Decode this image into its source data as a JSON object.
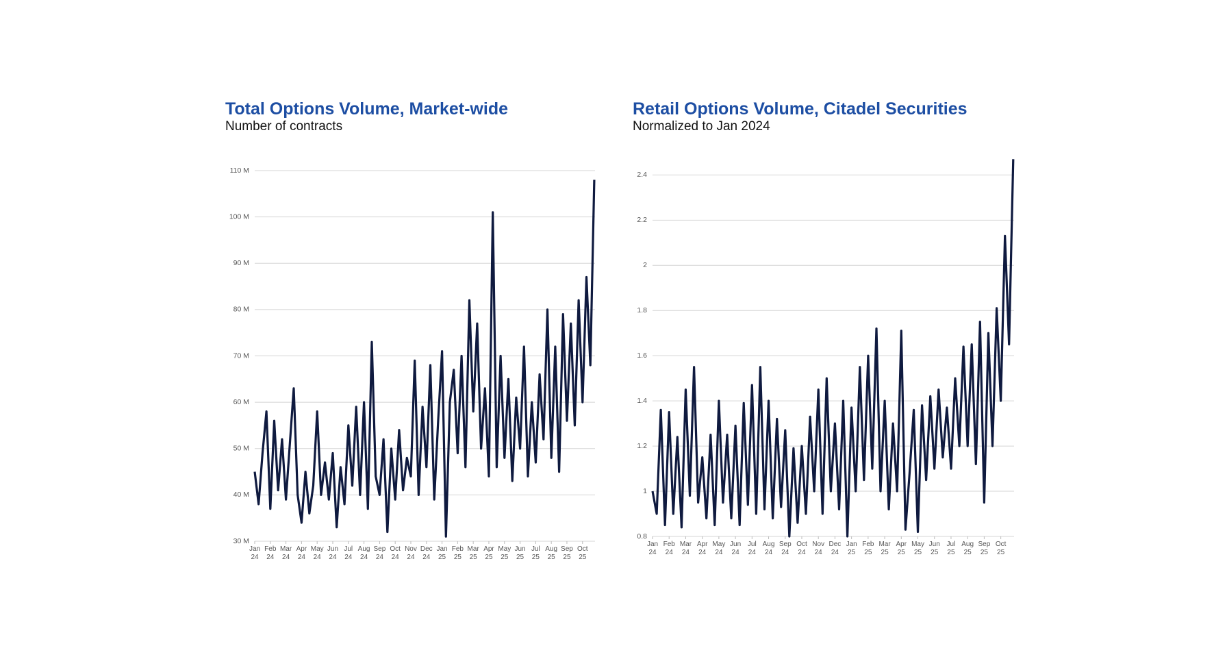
{
  "chart_data": [
    {
      "type": "line",
      "title": "Total Options Volume, Market-wide",
      "subtitle": "Number of contracts",
      "x": [
        0,
        0.25,
        0.5,
        0.75,
        1,
        1.25,
        1.5,
        1.75,
        2,
        2.25,
        2.5,
        2.75,
        3,
        3.25,
        3.5,
        3.75,
        4,
        4.25,
        4.5,
        4.75,
        5,
        5.25,
        5.5,
        5.75,
        6,
        6.25,
        6.5,
        6.75,
        7,
        7.25,
        7.5,
        7.75,
        8,
        8.25,
        8.5,
        8.75,
        9,
        9.25,
        9.5,
        9.75,
        10,
        10.25,
        10.5,
        10.75,
        11,
        11.25,
        11.5,
        11.75,
        12,
        12.25,
        12.5,
        12.75,
        13,
        13.25,
        13.5,
        13.75,
        14,
        14.25,
        14.5,
        14.75,
        15,
        15.25,
        15.5,
        15.75,
        16,
        16.25,
        16.5,
        16.75,
        17,
        17.25,
        17.5,
        17.75,
        18,
        18.25,
        18.5,
        18.75,
        19,
        19.25,
        19.5,
        19.75,
        20,
        20.25,
        20.5,
        20.75,
        21,
        21.25,
        21.5,
        21.75
      ],
      "series": [
        {
          "color": "#0f1a3f",
          "values": [
            45,
            38,
            49,
            58,
            37,
            56,
            41,
            52,
            39,
            51,
            63,
            40,
            34,
            45,
            36,
            42,
            58,
            40,
            47,
            39,
            49,
            33,
            46,
            38,
            55,
            42,
            59,
            40,
            60,
            37,
            73,
            44,
            40,
            52,
            32,
            50,
            39,
            54,
            41,
            48,
            44,
            69,
            40,
            59,
            46,
            68,
            39,
            56,
            71,
            31,
            60,
            67,
            49,
            70,
            46,
            82,
            58,
            77,
            50,
            63,
            44,
            101,
            46,
            70,
            48,
            65,
            43,
            61,
            50,
            72,
            44,
            60,
            47,
            66,
            52,
            80,
            48,
            72,
            45,
            79,
            56,
            77,
            55,
            82,
            60,
            87,
            68,
            108
          ]
        }
      ],
      "xlim": [
        0,
        21.8
      ],
      "xticks": [
        {
          "value": 0,
          "label": "Jan 24"
        },
        {
          "value": 1,
          "label": "Feb 24"
        },
        {
          "value": 2,
          "label": "Mar 24"
        },
        {
          "value": 3,
          "label": "Apr 24"
        },
        {
          "value": 4,
          "label": "May 24"
        },
        {
          "value": 5,
          "label": "Jun 24"
        },
        {
          "value": 6,
          "label": "Jul 24"
        },
        {
          "value": 7,
          "label": "Aug 24"
        },
        {
          "value": 8,
          "label": "Sep 24"
        },
        {
          "value": 9,
          "label": "Oct 24"
        },
        {
          "value": 10,
          "label": "Nov 24"
        },
        {
          "value": 11,
          "label": "Dec 24"
        },
        {
          "value": 12,
          "label": "Jan 25"
        },
        {
          "value": 13,
          "label": "Feb 25"
        },
        {
          "value": 14,
          "label": "Mar 25"
        },
        {
          "value": 15,
          "label": "Apr 25"
        },
        {
          "value": 16,
          "label": "May 25"
        },
        {
          "value": 17,
          "label": "Jun 25"
        },
        {
          "value": 18,
          "label": "Jul 25"
        },
        {
          "value": 19,
          "label": "Aug 25"
        },
        {
          "value": 20,
          "label": "Sep 25"
        },
        {
          "value": 21,
          "label": "Oct 25"
        }
      ],
      "ylim": [
        30,
        110
      ],
      "yticks": [
        {
          "value": 30,
          "label": "30 M"
        },
        {
          "value": 40,
          "label": "40 M"
        },
        {
          "value": 50,
          "label": "50 M"
        },
        {
          "value": 60,
          "label": "60 M"
        },
        {
          "value": 70,
          "label": "70 M"
        },
        {
          "value": 80,
          "label": "80 M"
        },
        {
          "value": 90,
          "label": "90 M"
        },
        {
          "value": 100,
          "label": "100 M"
        },
        {
          "value": 110,
          "label": "110 M"
        }
      ],
      "grid": true
    },
    {
      "type": "line",
      "title": "Retail Options Volume, Citadel Securities",
      "subtitle": "Normalized to Jan 2024",
      "x": [
        0,
        0.25,
        0.5,
        0.75,
        1,
        1.25,
        1.5,
        1.75,
        2,
        2.25,
        2.5,
        2.75,
        3,
        3.25,
        3.5,
        3.75,
        4,
        4.25,
        4.5,
        4.75,
        5,
        5.25,
        5.5,
        5.75,
        6,
        6.25,
        6.5,
        6.75,
        7,
        7.25,
        7.5,
        7.75,
        8,
        8.25,
        8.5,
        8.75,
        9,
        9.25,
        9.5,
        9.75,
        10,
        10.25,
        10.5,
        10.75,
        11,
        11.25,
        11.5,
        11.75,
        12,
        12.25,
        12.5,
        12.75,
        13,
        13.25,
        13.5,
        13.75,
        14,
        14.25,
        14.5,
        14.75,
        15,
        15.25,
        15.5,
        15.75,
        16,
        16.25,
        16.5,
        16.75,
        17,
        17.25,
        17.5,
        17.75,
        18,
        18.25,
        18.5,
        18.75,
        19,
        19.25,
        19.5,
        19.75,
        20,
        20.25,
        20.5,
        20.75,
        21,
        21.25,
        21.5,
        21.75
      ],
      "series": [
        {
          "color": "#0f1a3f",
          "values": [
            1.0,
            0.9,
            1.36,
            0.85,
            1.35,
            0.9,
            1.24,
            0.84,
            1.45,
            0.98,
            1.55,
            0.95,
            1.15,
            0.88,
            1.25,
            0.85,
            1.4,
            0.95,
            1.25,
            0.88,
            1.29,
            0.85,
            1.39,
            0.94,
            1.47,
            0.9,
            1.55,
            0.92,
            1.4,
            0.88,
            1.32,
            0.93,
            1.27,
            0.8,
            1.19,
            0.86,
            1.2,
            0.9,
            1.33,
            1.0,
            1.45,
            0.9,
            1.5,
            1.0,
            1.3,
            0.92,
            1.4,
            0.8,
            1.37,
            1.0,
            1.55,
            1.05,
            1.6,
            1.1,
            1.72,
            1.0,
            1.4,
            0.92,
            1.3,
            1.0,
            1.71,
            0.83,
            1.08,
            1.36,
            0.82,
            1.38,
            1.05,
            1.42,
            1.1,
            1.45,
            1.15,
            1.37,
            1.1,
            1.5,
            1.2,
            1.64,
            1.2,
            1.65,
            1.12,
            1.75,
            0.95,
            1.7,
            1.2,
            1.81,
            1.4,
            2.13,
            1.65,
            2.47
          ]
        }
      ],
      "xlim": [
        0,
        21.8
      ],
      "xticks": [
        {
          "value": 0,
          "label": "Jan 24"
        },
        {
          "value": 1,
          "label": "Feb 24"
        },
        {
          "value": 2,
          "label": "Mar 24"
        },
        {
          "value": 3,
          "label": "Apr 24"
        },
        {
          "value": 4,
          "label": "May 24"
        },
        {
          "value": 5,
          "label": "Jun 24"
        },
        {
          "value": 6,
          "label": "Jul 24"
        },
        {
          "value": 7,
          "label": "Aug 24"
        },
        {
          "value": 8,
          "label": "Sep 24"
        },
        {
          "value": 9,
          "label": "Oct 24"
        },
        {
          "value": 10,
          "label": "Nov 24"
        },
        {
          "value": 11,
          "label": "Dec 24"
        },
        {
          "value": 12,
          "label": "Jan 25"
        },
        {
          "value": 13,
          "label": "Feb 25"
        },
        {
          "value": 14,
          "label": "Mar 25"
        },
        {
          "value": 15,
          "label": "Apr 25"
        },
        {
          "value": 16,
          "label": "May 25"
        },
        {
          "value": 17,
          "label": "Jun 25"
        },
        {
          "value": 18,
          "label": "Jul 25"
        },
        {
          "value": 19,
          "label": "Aug 25"
        },
        {
          "value": 20,
          "label": "Sep 25"
        },
        {
          "value": 21,
          "label": "Oct 25"
        }
      ],
      "ylim": [
        0.8,
        2.48
      ],
      "yticks": [
        0.8,
        1,
        1.2,
        1.4,
        1.6,
        1.8,
        2,
        2.2,
        2.4
      ],
      "grid": true
    }
  ]
}
